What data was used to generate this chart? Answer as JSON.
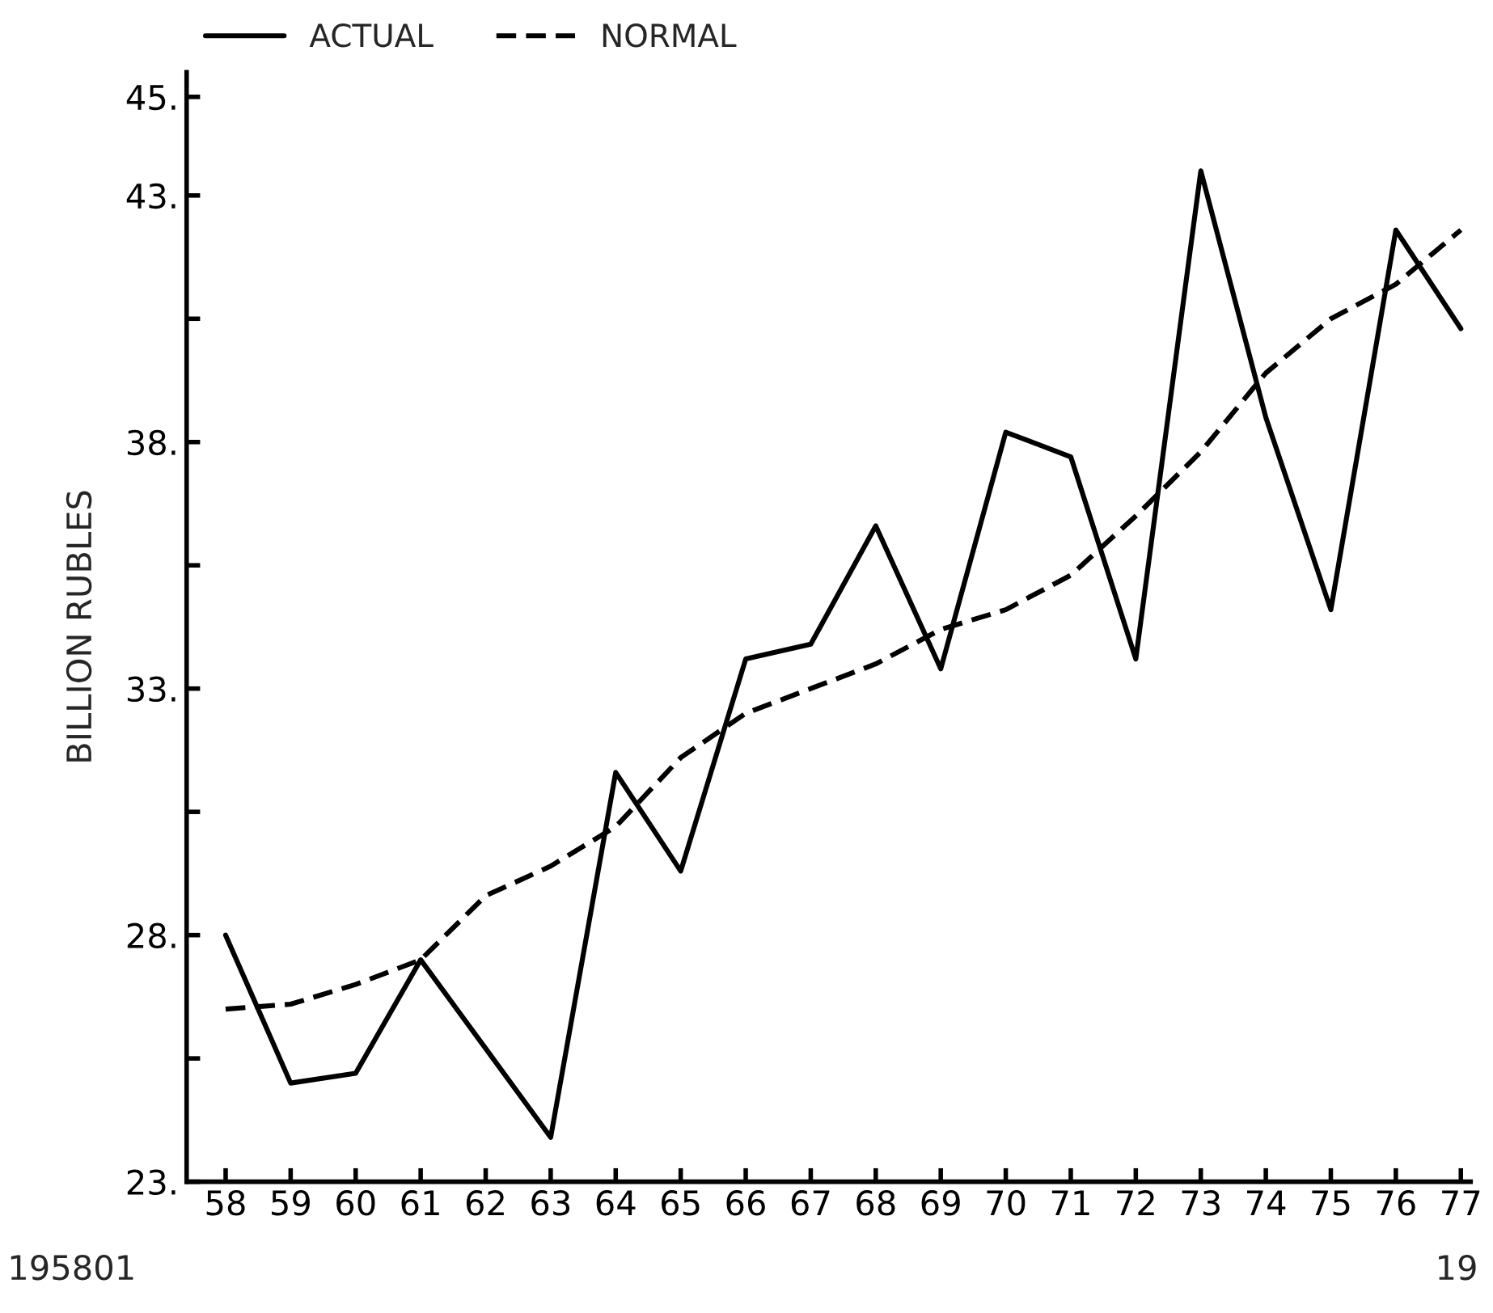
{
  "chart_data": {
    "type": "line",
    "ylabel": "BILLION RUBLES",
    "categories": [
      "58",
      "59",
      "60",
      "61",
      "62",
      "63",
      "64",
      "65",
      "66",
      "67",
      "68",
      "69",
      "70",
      "71",
      "72",
      "73",
      "74",
      "75",
      "76",
      "77"
    ],
    "series": [
      {
        "name": "ACTUAL",
        "color": "#000000",
        "line_style": "solid",
        "values": [
          28.0,
          25.0,
          25.2,
          27.5,
          25.7,
          23.9,
          31.3,
          29.3,
          33.6,
          33.9,
          36.3,
          33.4,
          38.2,
          37.7,
          33.6,
          43.5,
          38.5,
          34.6,
          42.3,
          40.3
        ]
      },
      {
        "name": "NORMAL",
        "color": "#000000",
        "line_style": "dashed",
        "values": [
          26.5,
          26.6,
          27.0,
          27.5,
          28.8,
          29.4,
          30.2,
          31.6,
          32.5,
          33.0,
          33.5,
          34.2,
          34.6,
          35.3,
          36.5,
          37.8,
          39.4,
          40.5,
          41.2,
          42.3
        ]
      }
    ],
    "ylim": [
      23,
      45.5
    ],
    "yticks": [
      {
        "value": 23,
        "label": "23."
      },
      {
        "value": 25.5,
        "label": null
      },
      {
        "value": 28,
        "label": "28."
      },
      {
        "value": 30.5,
        "label": null
      },
      {
        "value": 33,
        "label": "33."
      },
      {
        "value": 35.5,
        "label": null
      },
      {
        "value": 38,
        "label": "38."
      },
      {
        "value": 40.5,
        "label": null
      },
      {
        "value": 43,
        "label": "43."
      },
      {
        "value": 45,
        "label": "45."
      }
    ],
    "legend": "top left",
    "grid": false,
    "marker": "none",
    "annotations": [
      "195801",
      "19"
    ]
  }
}
